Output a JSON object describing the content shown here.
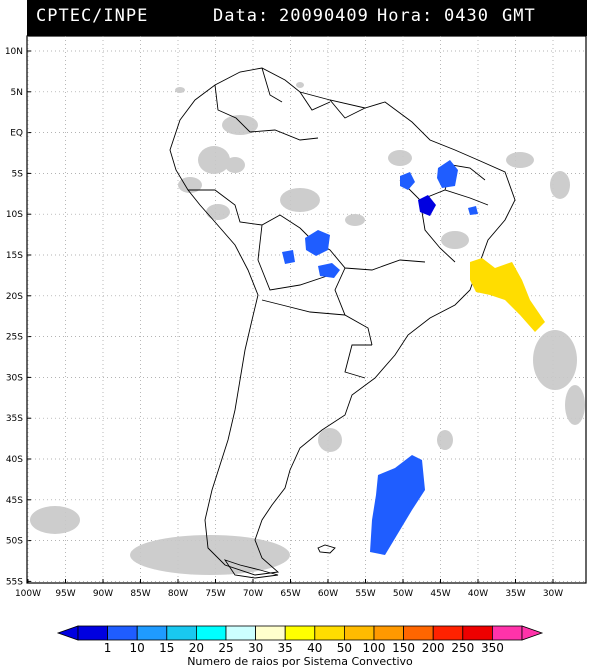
{
  "header": {
    "source": "CPTEC/INPE",
    "date_label": "Data:",
    "date_value": "20090409",
    "hour_label": "Hora:",
    "hour_value": "0430",
    "tz": "GMT"
  },
  "map": {
    "lat_labels": [
      "10N",
      "5N",
      "EQ",
      "5S",
      "10S",
      "15S",
      "20S",
      "25S",
      "30S",
      "35S",
      "40S",
      "45S",
      "50S",
      "55S"
    ],
    "lon_labels": [
      "100W",
      "95W",
      "90W",
      "85W",
      "80W",
      "75W",
      "70W",
      "65W",
      "60W",
      "55W",
      "50W",
      "45W",
      "40W",
      "35W",
      "30W"
    ],
    "colors": {
      "land_line": "#000000",
      "cloud": "#c8c8c8",
      "grid": "#9a9a9a"
    }
  },
  "colorbar": {
    "labels": [
      "1",
      "10",
      "15",
      "20",
      "25",
      "30",
      "35",
      "40",
      "50",
      "100",
      "150",
      "200",
      "250",
      "350"
    ],
    "colors": [
      "#0000e0",
      "#1f5dff",
      "#1f9bff",
      "#19c8f0",
      "#00ffff",
      "#ccffff",
      "#ffffcc",
      "#ffff00",
      "#ffdd00",
      "#ffbb00",
      "#ff9900",
      "#ff6600",
      "#ff2200",
      "#ee0000",
      "#ff33aa"
    ],
    "title": "Numero de raios por Sistema Convectivo"
  },
  "systems": [
    {
      "color": "#0000e0"
    },
    {
      "color": "#1f5dff"
    },
    {
      "color": "#ffdd00"
    }
  ]
}
